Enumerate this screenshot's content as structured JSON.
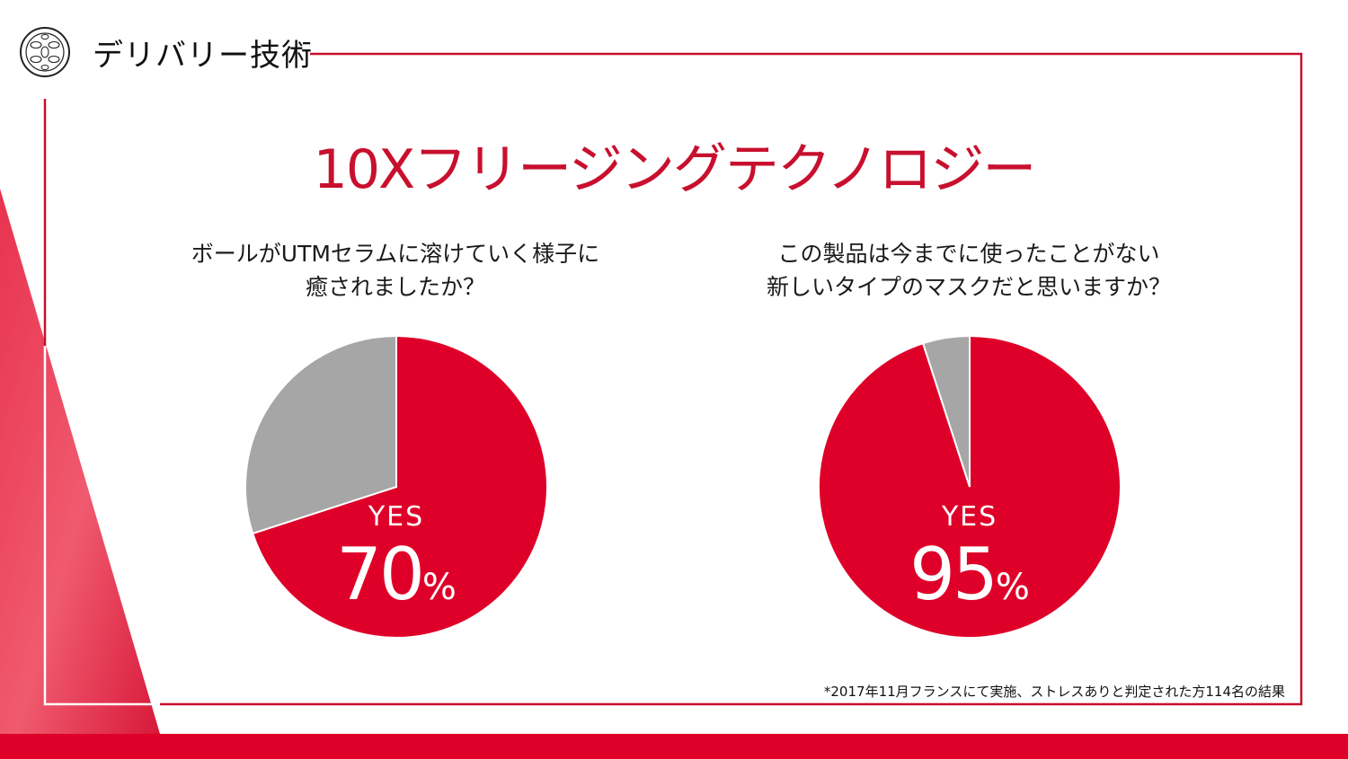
{
  "header": {
    "logo_icon": "camellia-emblem-icon",
    "section_title": "デリバリー技術"
  },
  "main": {
    "title": "10Xフリージングテクノロジー"
  },
  "colors": {
    "accent": "#c8102e",
    "pie_yes": "#df0029",
    "pie_no": "#a6a6a6"
  },
  "charts": [
    {
      "question_lines": [
        "ボールがUTMセラムに溶けていく様子に",
        "癒されましたか？"
      ],
      "yes_label": "YES",
      "percent_value": "70",
      "percent_sign": "%"
    },
    {
      "question_lines": [
        "この製品は今までに使ったことがない",
        "新しいタイプのマスクだと思いますか？"
      ],
      "yes_label": "YES",
      "percent_value": "95",
      "percent_sign": "%"
    }
  ],
  "chart_data": [
    {
      "type": "pie",
      "categories": [
        "YES",
        ""
      ],
      "values": [
        70,
        30
      ],
      "colors": [
        "#df0029",
        "#a6a6a6"
      ]
    },
    {
      "type": "pie",
      "categories": [
        "YES",
        ""
      ],
      "values": [
        95,
        5
      ],
      "colors": [
        "#df0029",
        "#a6a6a6"
      ]
    }
  ],
  "footnote": "*2017年11月フランスにて実施、ストレスありと判定された方114名の結果"
}
